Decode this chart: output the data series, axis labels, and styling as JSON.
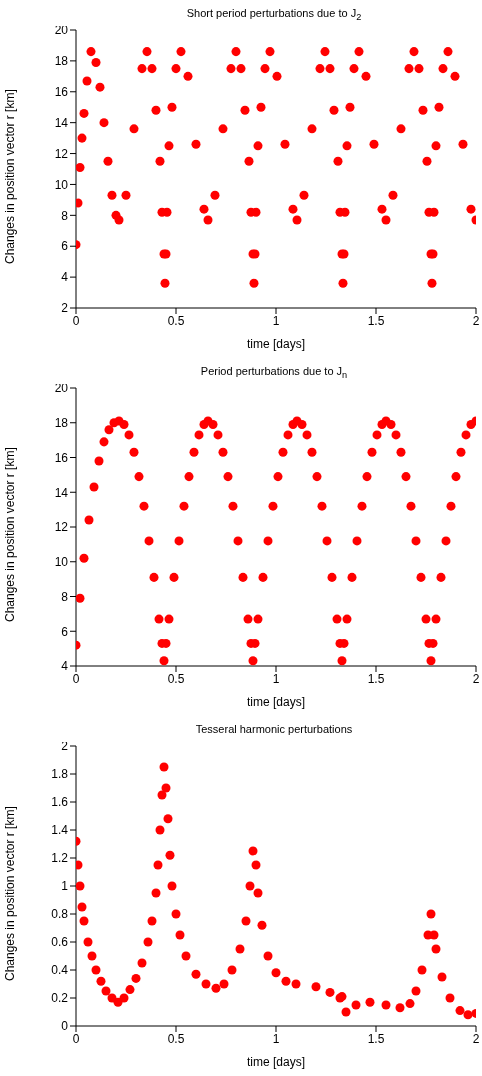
{
  "chart_data": [
    {
      "type": "scatter",
      "title": "Short period perturbations due to J$_{2}$",
      "xlabel": "time [days]",
      "ylabel": "Changes in position vector r [km]",
      "xlim": [
        0,
        2
      ],
      "xticks": [
        0,
        0.5,
        1,
        1.5,
        2
      ],
      "ylim": [
        2,
        20
      ],
      "yticks": [
        2,
        4,
        6,
        8,
        10,
        12,
        14,
        16,
        18,
        20
      ],
      "grid": false,
      "marker": "circle",
      "series": [
        {
          "color": "#ff0000",
          "x": [
            0,
            0.01,
            0.02,
            0.03,
            0.04,
            0.055,
            0.075,
            0.1,
            0.12,
            0.14,
            0.16,
            0.18,
            0.2,
            0.215,
            0.25,
            0.29,
            0.33,
            0.355,
            0.38,
            0.4,
            0.42,
            0.43,
            0.44,
            0.445,
            0.45,
            0.455,
            0.465,
            0.48,
            0.5,
            0.525,
            0.56,
            0.6,
            0.64,
            0.66,
            0.695,
            0.735,
            0.775,
            0.8,
            0.825,
            0.845,
            0.865,
            0.875,
            0.885,
            0.89,
            0.895,
            0.9,
            0.91,
            0.925,
            0.945,
            0.97,
            1.005,
            1.045,
            1.085,
            1.105,
            1.14,
            1.18,
            1.22,
            1.245,
            1.27,
            1.29,
            1.31,
            1.32,
            1.33,
            1.335,
            1.34,
            1.345,
            1.355,
            1.37,
            1.39,
            1.415,
            1.45,
            1.49,
            1.53,
            1.55,
            1.585,
            1.625,
            1.665,
            1.69,
            1.715,
            1.735,
            1.755,
            1.765,
            1.775,
            1.78,
            1.785,
            1.79,
            1.8,
            1.815,
            1.835,
            1.86,
            1.895,
            1.935,
            1.975,
            2.0
          ],
          "values": [
            6.1,
            8.8,
            11.1,
            13,
            14.6,
            16.7,
            18.6,
            17.9,
            16.3,
            14,
            11.5,
            9.3,
            8,
            7.7,
            9.3,
            13.6,
            17.5,
            18.6,
            17.5,
            14.8,
            11.5,
            8.2,
            5.5,
            3.6,
            5.5,
            8.2,
            12.5,
            15,
            17.5,
            18.6,
            17,
            12.6,
            8.4,
            7.7,
            9.3,
            13.6,
            17.5,
            18.6,
            17.5,
            14.8,
            11.5,
            8.2,
            5.5,
            3.6,
            5.5,
            8.2,
            12.5,
            15,
            17.5,
            18.6,
            17,
            12.6,
            8.4,
            7.7,
            9.3,
            13.6,
            17.5,
            18.6,
            17.5,
            14.8,
            11.5,
            8.2,
            5.5,
            3.6,
            5.5,
            8.2,
            12.5,
            15,
            17.5,
            18.6,
            17,
            12.6,
            8.4,
            7.7,
            9.3,
            13.6,
            17.5,
            18.6,
            17.5,
            14.8,
            11.5,
            8.2,
            5.5,
            3.6,
            5.5,
            8.2,
            12.5,
            15,
            17.5,
            18.6,
            17,
            12.6,
            8.4,
            7.7
          ]
        }
      ]
    },
    {
      "type": "scatter",
      "title": "Period perturbations due to J$_{n}$",
      "xlabel": "time [days]",
      "ylabel": "Changes in position vector r [km]",
      "xlim": [
        0,
        2
      ],
      "xticks": [
        0,
        0.5,
        1,
        1.5,
        2
      ],
      "ylim": [
        4,
        20
      ],
      "yticks": [
        4,
        6,
        8,
        10,
        12,
        14,
        16,
        18,
        20
      ],
      "grid": false,
      "marker": "circle",
      "series": [
        {
          "color": "#ff0000",
          "x": [
            0,
            0.02,
            0.04,
            0.065,
            0.09,
            0.115,
            0.14,
            0.165,
            0.19,
            0.215,
            0.24,
            0.265,
            0.29,
            0.315,
            0.34,
            0.365,
            0.39,
            0.415,
            0.43,
            0.44,
            0.45,
            0.465,
            0.49,
            0.515,
            0.54,
            0.565,
            0.59,
            0.615,
            0.64,
            0.66,
            0.685,
            0.71,
            0.735,
            0.76,
            0.785,
            0.81,
            0.835,
            0.86,
            0.875,
            0.885,
            0.895,
            0.91,
            0.935,
            0.96,
            0.985,
            1.01,
            1.035,
            1.06,
            1.085,
            1.105,
            1.13,
            1.155,
            1.18,
            1.205,
            1.23,
            1.255,
            1.28,
            1.305,
            1.32,
            1.33,
            1.34,
            1.355,
            1.38,
            1.405,
            1.43,
            1.455,
            1.48,
            1.505,
            1.53,
            1.55,
            1.575,
            1.6,
            1.625,
            1.65,
            1.675,
            1.7,
            1.725,
            1.75,
            1.765,
            1.775,
            1.785,
            1.8,
            1.825,
            1.85,
            1.875,
            1.9,
            1.925,
            1.95,
            1.975,
            2.0
          ],
          "values": [
            5.2,
            7.9,
            10.2,
            12.4,
            14.3,
            15.8,
            16.9,
            17.6,
            18,
            18.1,
            17.9,
            17.3,
            16.3,
            14.9,
            13.2,
            11.2,
            9.1,
            6.7,
            5.3,
            4.3,
            5.3,
            6.7,
            9.1,
            11.2,
            13.2,
            14.9,
            16.3,
            17.3,
            17.9,
            18.1,
            17.9,
            17.3,
            16.3,
            14.9,
            13.2,
            11.2,
            9.1,
            6.7,
            5.3,
            4.3,
            5.3,
            6.7,
            9.1,
            11.2,
            13.2,
            14.9,
            16.3,
            17.3,
            17.9,
            18.1,
            17.9,
            17.3,
            16.3,
            14.9,
            13.2,
            11.2,
            9.1,
            6.7,
            5.3,
            4.3,
            5.3,
            6.7,
            9.1,
            11.2,
            13.2,
            14.9,
            16.3,
            17.3,
            17.9,
            18.1,
            17.9,
            17.3,
            16.3,
            14.9,
            13.2,
            11.2,
            9.1,
            6.7,
            5.3,
            4.3,
            5.3,
            6.7,
            9.1,
            11.2,
            13.2,
            14.9,
            16.3,
            17.3,
            17.9,
            18.1
          ]
        }
      ]
    },
    {
      "type": "scatter",
      "title": "Tesseral harmonic perturbations",
      "xlabel": "time [days]",
      "ylabel": "Changes in position vector r [km]",
      "xlim": [
        0,
        2
      ],
      "xticks": [
        0,
        0.5,
        1,
        1.5,
        2
      ],
      "ylim": [
        0,
        2
      ],
      "yticks": [
        0,
        0.2,
        0.4,
        0.6,
        0.8,
        1,
        1.2,
        1.4,
        1.6,
        1.8,
        2
      ],
      "grid": false,
      "marker": "circle",
      "series": [
        {
          "color": "#ff0000",
          "x": [
            0,
            0.01,
            0.02,
            0.03,
            0.04,
            0.06,
            0.08,
            0.1,
            0.125,
            0.15,
            0.18,
            0.21,
            0.24,
            0.27,
            0.3,
            0.33,
            0.36,
            0.38,
            0.4,
            0.41,
            0.42,
            0.43,
            0.44,
            0.45,
            0.46,
            0.47,
            0.48,
            0.5,
            0.52,
            0.55,
            0.6,
            0.65,
            0.7,
            0.74,
            0.78,
            0.82,
            0.85,
            0.87,
            0.885,
            0.9,
            0.91,
            0.93,
            0.96,
            1.0,
            1.05,
            1.1,
            1.2,
            1.27,
            1.32,
            1.33,
            1.35,
            1.4,
            1.47,
            1.55,
            1.62,
            1.67,
            1.7,
            1.73,
            1.76,
            1.775,
            1.79,
            1.8,
            1.83,
            1.87,
            1.92,
            1.96,
            2.0
          ],
          "values": [
            1.32,
            1.15,
            1,
            0.85,
            0.75,
            0.6,
            0.5,
            0.4,
            0.32,
            0.25,
            0.2,
            0.17,
            0.2,
            0.26,
            0.34,
            0.45,
            0.6,
            0.75,
            0.95,
            1.15,
            1.4,
            1.65,
            1.85,
            1.7,
            1.48,
            1.22,
            1,
            0.8,
            0.65,
            0.5,
            0.37,
            0.3,
            0.27,
            0.3,
            0.4,
            0.55,
            0.75,
            1,
            1.25,
            1.15,
            0.95,
            0.72,
            0.5,
            0.38,
            0.32,
            0.3,
            0.28,
            0.24,
            0.2,
            0.21,
            0.1,
            0.15,
            0.17,
            0.15,
            0.13,
            0.16,
            0.25,
            0.4,
            0.65,
            0.8,
            0.65,
            0.55,
            0.35,
            0.2,
            0.11,
            0.08,
            0.09
          ]
        }
      ]
    }
  ]
}
